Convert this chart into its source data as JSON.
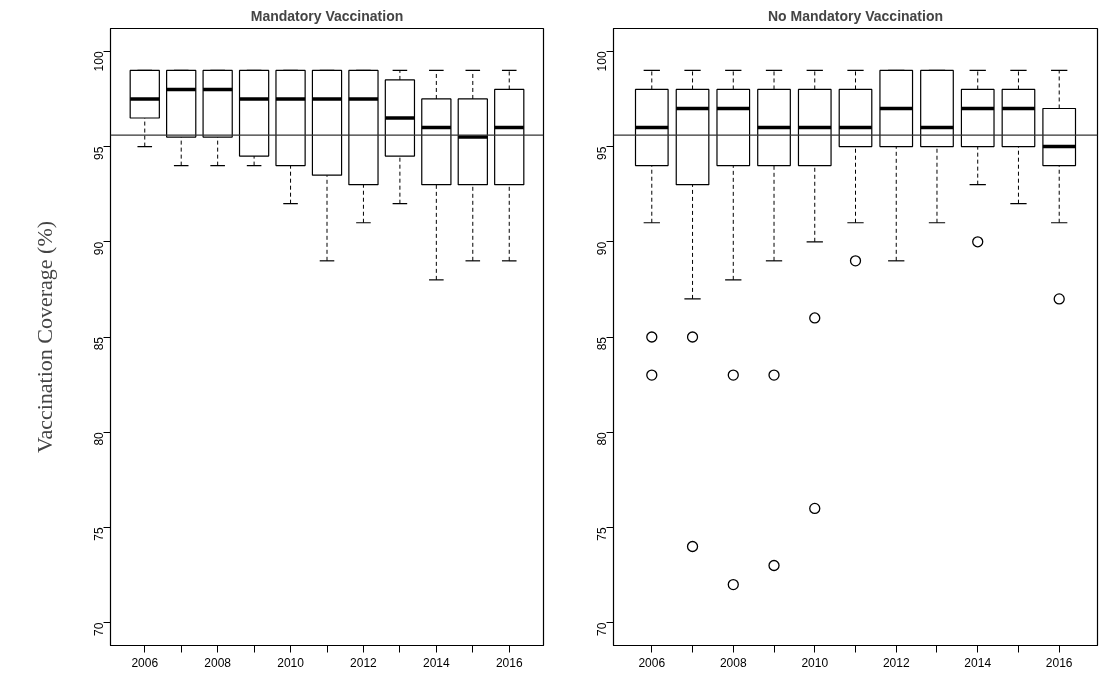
{
  "chart_data": [
    {
      "type": "box",
      "title": "Mandatory Vaccination",
      "ylabel": "Vaccination Coverage (%)",
      "categories": [
        "2006",
        null,
        "2008",
        null,
        "2010",
        null,
        "2012",
        null,
        "2014",
        null,
        "2016"
      ],
      "boxes": [
        {
          "low": 95,
          "q1": 96.5,
          "median": 97.5,
          "q3": 99,
          "high": 99
        },
        {
          "low": 94,
          "q1": 95.5,
          "median": 98,
          "q3": 99,
          "high": 99
        },
        {
          "low": 94,
          "q1": 95.5,
          "median": 98,
          "q3": 99,
          "high": 99
        },
        {
          "low": 94,
          "q1": 94.5,
          "median": 97.5,
          "q3": 99,
          "high": 99
        },
        {
          "low": 92,
          "q1": 94,
          "median": 97.5,
          "q3": 99,
          "high": 99
        },
        {
          "low": 89,
          "q1": 93.5,
          "median": 97.5,
          "q3": 99,
          "high": 99
        },
        {
          "low": 91,
          "q1": 93,
          "median": 97.5,
          "q3": 99,
          "high": 99
        },
        {
          "low": 92,
          "q1": 94.5,
          "median": 96.5,
          "q3": 98.5,
          "high": 99
        },
        {
          "low": 88,
          "q1": 93,
          "median": 96,
          "q3": 97.5,
          "high": 99
        },
        {
          "low": 89,
          "q1": 93,
          "median": 95.5,
          "q3": 97.5,
          "high": 99
        },
        {
          "low": 89,
          "q1": 93,
          "median": 96,
          "q3": 98,
          "high": 99
        }
      ],
      "ylim": [
        68.8,
        101.2
      ],
      "yticks": [
        70,
        75,
        80,
        85,
        90,
        95,
        100
      ],
      "ref_lines": [
        {
          "axis": "y",
          "value": 95.6
        }
      ],
      "grid": false
    },
    {
      "type": "box",
      "title": "No Mandatory Vaccination",
      "categories": [
        "2006",
        null,
        "2008",
        null,
        "2010",
        null,
        "2012",
        null,
        "2014",
        null,
        "2016"
      ],
      "boxes": [
        {
          "low": 91,
          "q1": 94,
          "median": 96,
          "q3": 98,
          "high": 99,
          "outliers": [
            85,
            83
          ]
        },
        {
          "low": 87,
          "q1": 93,
          "median": 97,
          "q3": 98,
          "high": 99,
          "outliers": [
            85,
            74
          ]
        },
        {
          "low": 88,
          "q1": 94,
          "median": 97,
          "q3": 98,
          "high": 99,
          "outliers": [
            83,
            72
          ]
        },
        {
          "low": 89,
          "q1": 94,
          "median": 96,
          "q3": 98,
          "high": 99,
          "outliers": [
            83,
            73
          ]
        },
        {
          "low": 90,
          "q1": 94,
          "median": 96,
          "q3": 98,
          "high": 99,
          "outliers": [
            86,
            76
          ]
        },
        {
          "low": 91,
          "q1": 95,
          "median": 96,
          "q3": 98,
          "high": 99,
          "outliers": [
            89
          ]
        },
        {
          "low": 89,
          "q1": 95,
          "median": 97,
          "q3": 99,
          "high": 99
        },
        {
          "low": 91,
          "q1": 95,
          "median": 96,
          "q3": 99,
          "high": 99
        },
        {
          "low": 93,
          "q1": 95,
          "median": 97,
          "q3": 98,
          "high": 99,
          "outliers": [
            90
          ]
        },
        {
          "low": 92,
          "q1": 95,
          "median": 97,
          "q3": 98,
          "high": 99
        },
        {
          "low": 91,
          "q1": 94,
          "median": 95,
          "q3": 97,
          "high": 99,
          "outliers": [
            87
          ]
        }
      ],
      "ylim": [
        68.8,
        101.2
      ],
      "yticks": [
        70,
        75,
        80,
        85,
        90,
        95,
        100
      ],
      "ref_lines": [
        {
          "axis": "y",
          "value": 95.6
        }
      ],
      "grid": false
    }
  ]
}
